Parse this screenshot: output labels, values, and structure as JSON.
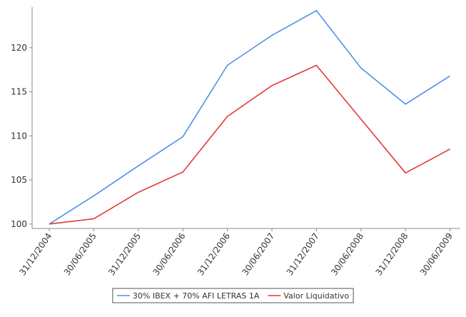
{
  "chart_data": {
    "type": "line",
    "categories": [
      "31/12/2004",
      "30/06/2005",
      "31/12/2005",
      "30/06/2006",
      "31/12/2006",
      "30/06/2007",
      "31/12/2007",
      "30/06/2008",
      "31/12/2008",
      "30/06/2009"
    ],
    "series": [
      {
        "name": "30% IBEX + 70% AFI LETRAS 1A",
        "color": "#4f8fe8",
        "values": [
          100,
          103.2,
          106.6,
          109.9,
          118.0,
          121.4,
          124.2,
          117.7,
          113.6,
          116.8
        ]
      },
      {
        "name": "Valor Liquidativo",
        "color": "#e23a3a",
        "values": [
          100,
          100.6,
          103.6,
          105.9,
          112.2,
          115.7,
          118.0,
          111.9,
          105.8,
          108.5
        ]
      }
    ],
    "ylim": [
      99.5,
      124.6
    ],
    "yticks": [
      100,
      105,
      110,
      115,
      120
    ],
    "grid": false,
    "legend": "bottom"
  }
}
